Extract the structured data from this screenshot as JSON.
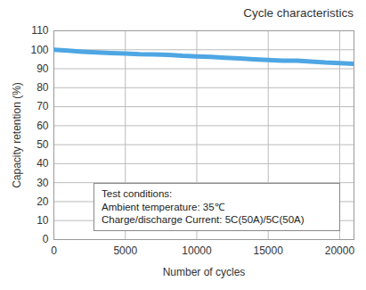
{
  "chart_data": {
    "type": "line",
    "title": "Cycle characteristics",
    "x_label": "Number of cycles",
    "y_label": "Capacity retention (%)",
    "annotation": [
      "Test conditions:",
      "Ambient temperature: 35℃",
      "Charge/discharge Current: 5C(50A)/5C(50A)"
    ],
    "x": [
      0,
      1000,
      2000,
      3000,
      4000,
      5000,
      6000,
      7000,
      8000,
      9000,
      10000,
      11000,
      12000,
      13000,
      14000,
      15000,
      16000,
      17000,
      18000,
      19000,
      20000,
      21000
    ],
    "values": [
      100,
      99.5,
      99,
      98.6,
      98.3,
      98,
      97.7,
      97.6,
      97.3,
      96.8,
      96.5,
      96.2,
      95.8,
      95.4,
      95,
      94.6,
      94.3,
      94.2,
      93.8,
      93.3,
      93,
      92.6
    ],
    "color": "#4ea6e3",
    "xlim": [
      0,
      21000
    ],
    "xticks": [
      0,
      5000,
      10000,
      15000,
      20000
    ],
    "ylim": [
      0,
      110
    ],
    "yticks": [
      0,
      10,
      20,
      30,
      40,
      50,
      60,
      70,
      80,
      90,
      100,
      110
    ],
    "grid": true
  }
}
